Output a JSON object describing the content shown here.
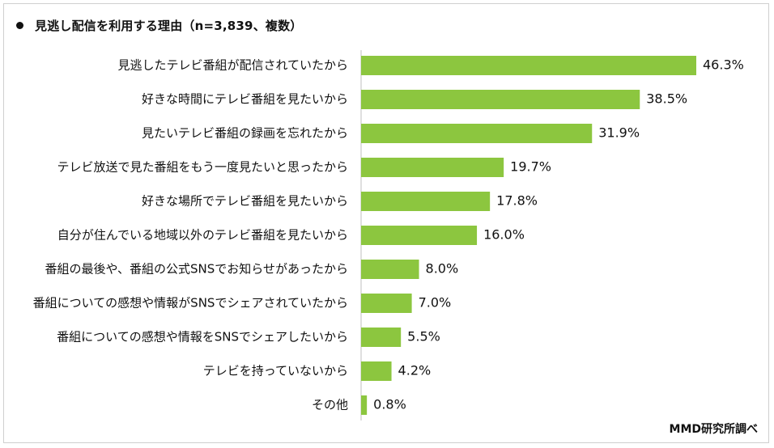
{
  "title": "見逃し配信を利用する理由（n=3,839、複数）",
  "source": "MMD研究所調べ",
  "colors": {
    "bar": "#8cc63f",
    "axis": "#bfbfbf",
    "text": "#111111"
  },
  "chart_data": {
    "type": "bar",
    "orientation": "horizontal",
    "title": "見逃し配信を利用する理由（n=3,839、複数）",
    "unit": "%",
    "categories": [
      "見逃したテレビ番組が配信されていたから",
      "好きな時間にテレビ番組を見たいから",
      "見たいテレビ番組の録画を忘れたから",
      "テレビ放送で見た番組をもう一度見たいと思ったから",
      "好きな場所でテレビ番組を見たいから",
      "自分が住んでいる地域以外のテレビ番組を見たいから",
      "番組の最後や、番組の公式SNSでお知らせがあったから",
      "番組についての感想や情報がSNSでシェアされていたから",
      "番組についての感想や情報をSNSでシェアしたいから",
      "テレビを持っていないから",
      "その他"
    ],
    "values": [
      46.3,
      38.5,
      31.9,
      19.7,
      17.8,
      16.0,
      8.0,
      7.0,
      5.5,
      4.2,
      0.8
    ],
    "value_labels": [
      "46.3%",
      "38.5%",
      "31.9%",
      "19.7%",
      "17.8%",
      "16.0%",
      "8.0%",
      "7.0%",
      "5.5%",
      "4.2%",
      "0.8%"
    ],
    "xlim": [
      0,
      50
    ],
    "grid": false,
    "legend": "none"
  }
}
